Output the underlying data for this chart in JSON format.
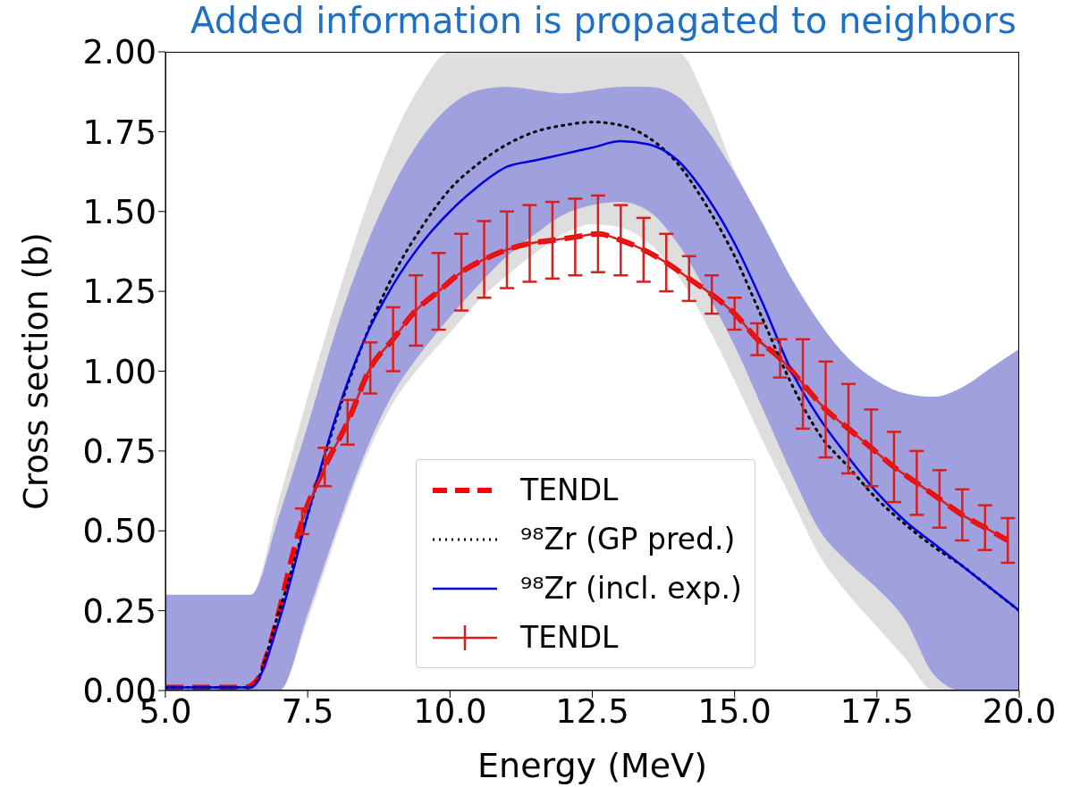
{
  "chart_data": {
    "type": "line",
    "title": "Added information is propagated to neighbors",
    "xlabel": "Energy (MeV)",
    "ylabel": "Cross section (b)",
    "xlim": [
      5,
      20
    ],
    "xticks": [
      {
        "value": 5,
        "label": "5.0"
      },
      {
        "value": 7.5,
        "label": "7.5"
      },
      {
        "value": 10,
        "label": "10.0"
      },
      {
        "value": 12.5,
        "label": "12.5"
      },
      {
        "value": 15,
        "label": "15.0"
      },
      {
        "value": 17.5,
        "label": "17.5"
      },
      {
        "value": 20,
        "label": "20.0"
      }
    ],
    "ylim": [
      0,
      2
    ],
    "yticks": [
      {
        "value": 0,
        "label": "0.00"
      },
      {
        "value": 0.25,
        "label": "0.25"
      },
      {
        "value": 0.5,
        "label": "0.50"
      },
      {
        "value": 0.75,
        "label": "0.75"
      },
      {
        "value": 1,
        "label": "1.00"
      },
      {
        "value": 1.25,
        "label": "1.25"
      },
      {
        "value": 1.5,
        "label": "1.50"
      },
      {
        "value": 1.75,
        "label": "1.75"
      },
      {
        "value": 2,
        "label": "2.00"
      }
    ],
    "grid": false,
    "legend": "bottom",
    "marker": "none",
    "series": [
      {
        "name": "TENDL",
        "color": "#ff0000",
        "line_style": "dashed",
        "x": [
          5,
          6.4,
          6.6,
          6.8,
          7.0,
          7.2,
          7.4,
          7.8,
          8.2,
          8.6,
          9.0,
          9.4,
          9.8,
          10.2,
          10.6,
          11.0,
          11.4,
          11.8,
          12.2,
          12.6,
          13.0,
          13.4,
          13.8,
          14.2,
          14.6,
          15.0,
          15.4,
          15.8,
          16.2,
          16.6,
          17.0,
          17.4,
          17.8,
          18.2,
          18.6,
          19.0,
          19.4,
          19.8
        ],
        "values": [
          0.01,
          0.01,
          0.03,
          0.12,
          0.25,
          0.4,
          0.53,
          0.7,
          0.84,
          1.01,
          1.1,
          1.19,
          1.25,
          1.31,
          1.35,
          1.38,
          1.4,
          1.41,
          1.42,
          1.43,
          1.41,
          1.38,
          1.34,
          1.29,
          1.24,
          1.18,
          1.1,
          1.04,
          0.96,
          0.88,
          0.82,
          0.76,
          0.7,
          0.65,
          0.6,
          0.55,
          0.51,
          0.47
        ]
      },
      {
        "name": "⁹⁸Zr (GP pred.)",
        "color": "#000000",
        "line_style": "dotted",
        "x": [
          5,
          6.5,
          7.0,
          7.5,
          8,
          8.5,
          9,
          9.5,
          10,
          10.5,
          11,
          11.5,
          12,
          12.5,
          13,
          13.5,
          14,
          14.5,
          15,
          15.5,
          16,
          16.5,
          17,
          17.5,
          18,
          18.5,
          19,
          19.5,
          20
        ],
        "values": [
          0.01,
          0.01,
          0.25,
          0.55,
          0.85,
          1.1,
          1.3,
          1.45,
          1.57,
          1.65,
          1.71,
          1.75,
          1.77,
          1.78,
          1.77,
          1.73,
          1.65,
          1.52,
          1.36,
          1.16,
          0.96,
          0.8,
          0.7,
          0.6,
          0.52,
          0.45,
          0.39,
          0.32,
          0.25
        ],
        "lower": [
          0,
          0,
          0,
          0.22,
          0.48,
          0.72,
          0.9,
          1.02,
          1.12,
          1.22,
          1.3,
          1.37,
          1.43,
          1.46,
          1.45,
          1.4,
          1.3,
          1.15,
          0.97,
          0.78,
          0.6,
          0.42,
          0.3,
          0.2,
          0.1,
          0,
          0,
          0,
          0
        ],
        "upper": [
          0.3,
          0.3,
          0.6,
          0.92,
          1.22,
          1.5,
          1.73,
          1.9,
          2.0,
          2.0,
          2.0,
          2.0,
          2.0,
          2.0,
          2.0,
          2.0,
          2.0,
          1.85,
          1.63,
          1.46,
          1.29,
          1.15,
          1.04,
          0.97,
          0.93,
          0.92,
          0.95,
          1.01,
          1.07
        ]
      },
      {
        "name": "⁹⁸Zr (incl. exp.)",
        "color": "#0000dd",
        "line_style": "solid",
        "x": [
          5,
          6.5,
          7.0,
          7.5,
          8,
          8.5,
          9,
          9.5,
          10,
          10.5,
          11,
          11.5,
          12,
          12.5,
          13,
          13.5,
          14,
          14.5,
          15,
          15.5,
          16,
          16.5,
          17,
          17.5,
          18,
          18.5,
          19,
          19.5,
          20
        ],
        "values": [
          0.01,
          0.01,
          0.22,
          0.55,
          0.86,
          1.1,
          1.27,
          1.4,
          1.5,
          1.58,
          1.64,
          1.66,
          1.68,
          1.7,
          1.72,
          1.71,
          1.66,
          1.55,
          1.4,
          1.21,
          1.0,
          0.85,
          0.73,
          0.62,
          0.53,
          0.46,
          0.39,
          0.32,
          0.25
        ],
        "lower": [
          0,
          0,
          0,
          0.24,
          0.5,
          0.74,
          0.93,
          1.06,
          1.17,
          1.27,
          1.36,
          1.43,
          1.49,
          1.52,
          1.53,
          1.5,
          1.4,
          1.25,
          1.08,
          0.88,
          0.68,
          0.5,
          0.4,
          0.32,
          0.22,
          0.05,
          0,
          0,
          0
        ],
        "upper": [
          0.3,
          0.3,
          0.55,
          0.83,
          1.13,
          1.38,
          1.58,
          1.73,
          1.83,
          1.88,
          1.89,
          1.88,
          1.87,
          1.88,
          1.89,
          1.89,
          1.86,
          1.76,
          1.62,
          1.46,
          1.29,
          1.15,
          1.04,
          0.97,
          0.93,
          0.92,
          0.95,
          1.01,
          1.07
        ]
      },
      {
        "name": "TENDL",
        "color": "#d62020",
        "line_style": "solid",
        "x": [
          7.4,
          7.8,
          8.2,
          8.6,
          9.0,
          9.4,
          9.8,
          10.2,
          10.6,
          11.0,
          11.4,
          11.8,
          12.2,
          12.6,
          13.0,
          13.4,
          13.8,
          14.2,
          14.6,
          15.0,
          15.4,
          15.8,
          16.2,
          16.6,
          17.0,
          17.4,
          17.8,
          18.2,
          18.6,
          19.0,
          19.4,
          19.8
        ],
        "values": [
          0.53,
          0.7,
          0.84,
          1.01,
          1.1,
          1.19,
          1.25,
          1.31,
          1.35,
          1.38,
          1.4,
          1.41,
          1.42,
          1.43,
          1.41,
          1.38,
          1.34,
          1.29,
          1.24,
          1.18,
          1.1,
          1.04,
          0.96,
          0.88,
          0.82,
          0.76,
          0.7,
          0.65,
          0.6,
          0.55,
          0.51,
          0.47
        ],
        "errors": [
          0.04,
          0.06,
          0.07,
          0.08,
          0.1,
          0.11,
          0.12,
          0.12,
          0.12,
          0.12,
          0.12,
          0.12,
          0.12,
          0.12,
          0.11,
          0.1,
          0.09,
          0.07,
          0.06,
          0.05,
          0.05,
          0.06,
          0.14,
          0.15,
          0.14,
          0.12,
          0.11,
          0.1,
          0.09,
          0.08,
          0.07,
          0.07
        ]
      }
    ]
  }
}
